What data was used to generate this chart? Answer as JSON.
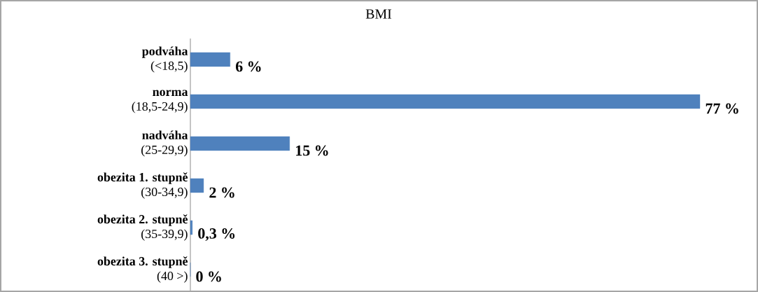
{
  "chart_data": {
    "type": "bar",
    "orientation": "horizontal",
    "title": "BMI",
    "categories": [
      "**podváha**\n(<18,5)",
      "**norma**\n(18,5-24,9)",
      "**nadváha**\n(25-29,9)",
      "**obezita 1. stupně**\n(30-34,9)",
      "**obezita 2. stupně**\n(35-39,9)",
      "**obezita 3. stupně**\n(40 >)"
    ],
    "values": [
      6,
      77,
      15,
      2,
      0.3,
      0
    ],
    "value_labels": [
      "6 %",
      "77 %",
      "15 %",
      "2 %",
      "0,3 %",
      "0 %"
    ],
    "color": "#4f81bd",
    "grid": false
  }
}
